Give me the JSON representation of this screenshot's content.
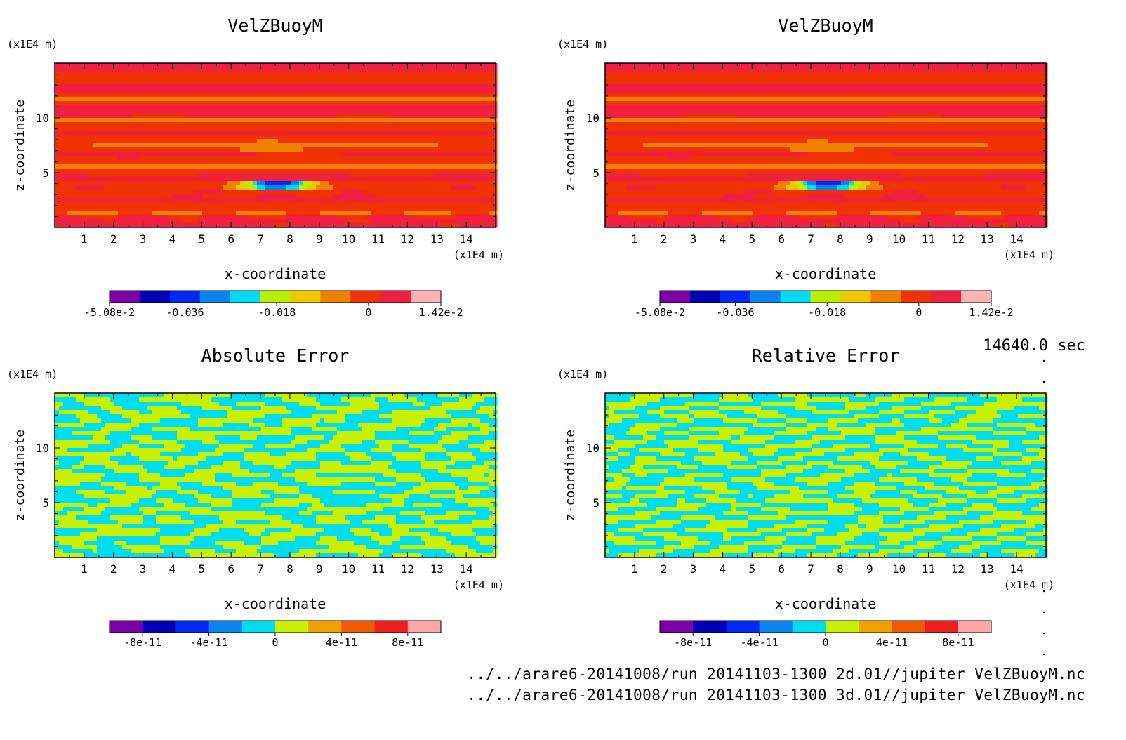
{
  "page": {
    "time_label": "14640.0 sec",
    "file_paths": [
      "../../arare6-20141008/run_20141103-1300_2d.01//jupiter_VelZBuoyM.nc",
      "../../arare6-20141008/run_20141103-1300_3d.01//jupiter_VelZBuoyM.nc"
    ]
  },
  "chart_data": [
    {
      "type": "heatmap",
      "title": "VelZBuoyM",
      "xlabel": "x-coordinate",
      "ylabel": "z-coordinate",
      "x_unit": "(x1E4 m)",
      "y_unit": "(x1E4 m)",
      "xlim": [
        0,
        15
      ],
      "ylim": [
        0,
        15
      ],
      "x_ticks": [
        "1",
        "2",
        "3",
        "4",
        "5",
        "6",
        "7",
        "8",
        "9",
        "10",
        "11",
        "12",
        "13",
        "14"
      ],
      "y_ticks": [
        "5",
        "10"
      ],
      "field": "buoyancy-velocity",
      "colorbar": {
        "colors": [
          "#7b00a8",
          "#0000b4",
          "#0028f0",
          "#0a82f0",
          "#00dcf0",
          "#b4f000",
          "#f0c800",
          "#f08000",
          "#f03200",
          "#f02040",
          "#ffb4b4"
        ],
        "tick_labels": [
          "-5.08e-2",
          "-0.036",
          "-0.018",
          "0",
          "1.42e-2"
        ],
        "tick_values": [
          -0.0508,
          -0.036,
          -0.018,
          0,
          0.0142
        ],
        "range": [
          -0.0508,
          0.0142
        ]
      }
    },
    {
      "type": "heatmap",
      "title": "VelZBuoyM",
      "xlabel": "x-coordinate",
      "ylabel": "z-coordinate",
      "x_unit": "(x1E4 m)",
      "y_unit": "(x1E4 m)",
      "xlim": [
        0,
        15
      ],
      "ylim": [
        0,
        15
      ],
      "x_ticks": [
        "1",
        "2",
        "3",
        "4",
        "5",
        "6",
        "7",
        "8",
        "9",
        "10",
        "11",
        "12",
        "13",
        "14"
      ],
      "y_ticks": [
        "5",
        "10"
      ],
      "field": "buoyancy-velocity",
      "colorbar": {
        "colors": [
          "#7b00a8",
          "#0000b4",
          "#0028f0",
          "#0a82f0",
          "#00dcf0",
          "#b4f000",
          "#f0c800",
          "#f08000",
          "#f03200",
          "#f02040",
          "#ffb4b4"
        ],
        "tick_labels": [
          "-5.08e-2",
          "-0.036",
          "-0.018",
          "0",
          "1.42e-2"
        ],
        "tick_values": [
          -0.0508,
          -0.036,
          -0.018,
          0,
          0.0142
        ],
        "range": [
          -0.0508,
          0.0142
        ]
      }
    },
    {
      "type": "heatmap",
      "title": "Absolute Error",
      "xlabel": "x-coordinate",
      "ylabel": "z-coordinate",
      "x_unit": "(x1E4 m)",
      "y_unit": "(x1E4 m)",
      "xlim": [
        0,
        15
      ],
      "ylim": [
        0,
        15
      ],
      "x_ticks": [
        "1",
        "2",
        "3",
        "4",
        "5",
        "6",
        "7",
        "8",
        "9",
        "10",
        "11",
        "12",
        "13",
        "14"
      ],
      "y_ticks": [
        "5",
        "10"
      ],
      "field": "noise",
      "seed": 7,
      "colorbar": {
        "colors": [
          "#7b00a8",
          "#0000b4",
          "#0028f0",
          "#0a82f0",
          "#00dcf0",
          "#c8f000",
          "#f0a000",
          "#f05a00",
          "#f01e1e",
          "#ffa8a8"
        ],
        "tick_labels": [
          "-8e-11",
          "-4e-11",
          "0",
          "4e-11",
          "8e-11"
        ],
        "tick_values": [
          -8e-11,
          -4e-11,
          0,
          4e-11,
          8e-11
        ],
        "range": [
          -1e-10,
          1e-10
        ]
      }
    },
    {
      "type": "heatmap",
      "title": "Relative Error",
      "xlabel": "x-coordinate",
      "ylabel": "z-coordinate",
      "x_unit": "(x1E4 m)",
      "y_unit": "(x1E4 m)",
      "xlim": [
        0,
        15
      ],
      "ylim": [
        0,
        15
      ],
      "x_ticks": [
        "1",
        "2",
        "3",
        "4",
        "5",
        "6",
        "7",
        "8",
        "9",
        "10",
        "11",
        "12",
        "13",
        "14"
      ],
      "y_ticks": [
        "5",
        "10"
      ],
      "field": "noise",
      "seed": 13,
      "colorbar": {
        "colors": [
          "#7b00a8",
          "#0000b4",
          "#0028f0",
          "#0a82f0",
          "#00dcf0",
          "#c8f000",
          "#f0a000",
          "#f05a00",
          "#f01e1e",
          "#ffa8a8"
        ],
        "tick_labels": [
          "-8e-11",
          "-4e-11",
          "0",
          "4e-11",
          "8e-11"
        ],
        "tick_values": [
          -8e-11,
          -4e-11,
          0,
          4e-11,
          8e-11
        ],
        "range": [
          -1e-10,
          1e-10
        ]
      }
    }
  ]
}
